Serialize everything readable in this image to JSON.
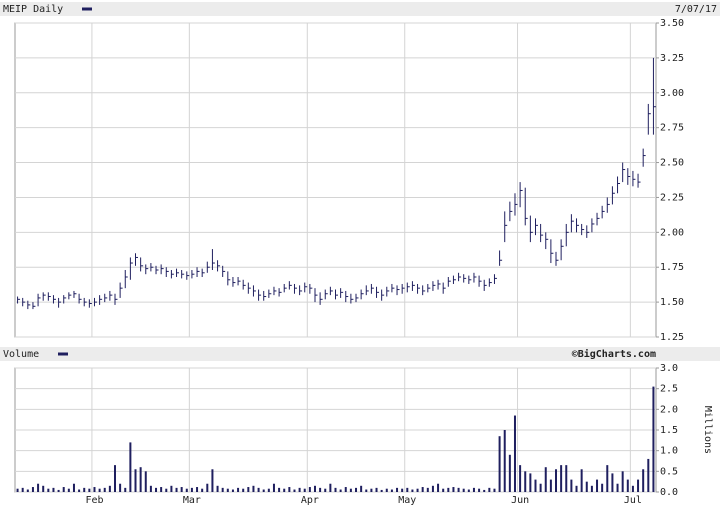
{
  "chart_data": [
    {
      "type": "ohlc",
      "title": "7/07/17",
      "legend": "top-left",
      "series": [
        {
          "name": "MEIP Daily",
          "color": "#1f1f5f",
          "high": [
            1.54,
            1.53,
            1.51,
            1.5,
            1.56,
            1.57,
            1.57,
            1.55,
            1.53,
            1.55,
            1.57,
            1.58,
            1.56,
            1.53,
            1.52,
            1.53,
            1.55,
            1.56,
            1.58,
            1.56,
            1.64,
            1.73,
            1.82,
            1.85,
            1.82,
            1.77,
            1.78,
            1.76,
            1.77,
            1.75,
            1.73,
            1.74,
            1.73,
            1.72,
            1.73,
            1.75,
            1.74,
            1.79,
            1.88,
            1.8,
            1.76,
            1.72,
            1.68,
            1.68,
            1.66,
            1.64,
            1.62,
            1.59,
            1.58,
            1.59,
            1.61,
            1.6,
            1.63,
            1.65,
            1.63,
            1.62,
            1.64,
            1.63,
            1.6,
            1.57,
            1.59,
            1.61,
            1.59,
            1.6,
            1.58,
            1.56,
            1.56,
            1.59,
            1.62,
            1.63,
            1.61,
            1.59,
            1.61,
            1.63,
            1.62,
            1.63,
            1.64,
            1.65,
            1.63,
            1.62,
            1.63,
            1.65,
            1.66,
            1.64,
            1.68,
            1.69,
            1.71,
            1.7,
            1.69,
            1.71,
            1.69,
            1.66,
            1.67,
            1.7,
            1.87,
            2.15,
            2.22,
            2.28,
            2.36,
            2.32,
            2.12,
            2.1,
            2.06,
            2.0,
            1.95,
            1.86,
            1.95,
            2.06,
            2.13,
            2.1,
            2.06,
            2.05,
            2.1,
            2.14,
            2.19,
            2.25,
            2.33,
            2.4,
            2.5,
            2.46,
            2.44,
            2.42,
            2.6,
            2.92,
            3.25
          ],
          "low": [
            1.49,
            1.47,
            1.45,
            1.45,
            1.47,
            1.51,
            1.51,
            1.49,
            1.46,
            1.49,
            1.52,
            1.53,
            1.49,
            1.47,
            1.46,
            1.47,
            1.48,
            1.5,
            1.51,
            1.48,
            1.53,
            1.6,
            1.66,
            1.76,
            1.72,
            1.7,
            1.72,
            1.7,
            1.7,
            1.68,
            1.67,
            1.68,
            1.67,
            1.66,
            1.67,
            1.68,
            1.68,
            1.71,
            1.73,
            1.72,
            1.68,
            1.62,
            1.61,
            1.62,
            1.59,
            1.56,
            1.54,
            1.51,
            1.51,
            1.53,
            1.55,
            1.54,
            1.57,
            1.59,
            1.56,
            1.55,
            1.57,
            1.56,
            1.5,
            1.48,
            1.52,
            1.55,
            1.52,
            1.53,
            1.5,
            1.49,
            1.5,
            1.52,
            1.55,
            1.56,
            1.53,
            1.51,
            1.54,
            1.57,
            1.55,
            1.56,
            1.57,
            1.58,
            1.56,
            1.55,
            1.57,
            1.58,
            1.59,
            1.56,
            1.61,
            1.63,
            1.65,
            1.64,
            1.63,
            1.64,
            1.61,
            1.58,
            1.61,
            1.63,
            1.76,
            1.93,
            2.08,
            2.12,
            2.18,
            2.05,
            1.93,
            1.98,
            1.93,
            1.88,
            1.78,
            1.76,
            1.8,
            1.9,
            2.0,
            2.0,
            1.98,
            1.96,
            2.0,
            2.05,
            2.1,
            2.14,
            2.2,
            2.28,
            2.36,
            2.34,
            2.33,
            2.32,
            2.47,
            2.7,
            2.7
          ],
          "close": [
            1.52,
            1.5,
            1.48,
            1.47,
            1.53,
            1.55,
            1.54,
            1.52,
            1.5,
            1.53,
            1.55,
            1.56,
            1.52,
            1.5,
            1.49,
            1.5,
            1.52,
            1.53,
            1.55,
            1.52,
            1.6,
            1.68,
            1.78,
            1.82,
            1.76,
            1.74,
            1.75,
            1.73,
            1.74,
            1.72,
            1.7,
            1.71,
            1.7,
            1.69,
            1.7,
            1.72,
            1.71,
            1.75,
            1.78,
            1.76,
            1.72,
            1.66,
            1.64,
            1.65,
            1.62,
            1.6,
            1.58,
            1.55,
            1.54,
            1.56,
            1.58,
            1.57,
            1.6,
            1.62,
            1.6,
            1.58,
            1.61,
            1.6,
            1.55,
            1.52,
            1.56,
            1.58,
            1.55,
            1.57,
            1.54,
            1.52,
            1.53,
            1.56,
            1.58,
            1.6,
            1.57,
            1.55,
            1.58,
            1.6,
            1.59,
            1.6,
            1.61,
            1.62,
            1.6,
            1.58,
            1.6,
            1.62,
            1.63,
            1.6,
            1.65,
            1.66,
            1.68,
            1.67,
            1.66,
            1.68,
            1.65,
            1.62,
            1.64,
            1.67,
            1.8,
            2.05,
            2.15,
            2.2,
            2.3,
            2.1,
            2.0,
            2.05,
            1.98,
            1.95,
            1.85,
            1.8,
            1.9,
            2.0,
            2.08,
            2.05,
            2.02,
            2.0,
            2.06,
            2.1,
            2.15,
            2.2,
            2.28,
            2.35,
            2.45,
            2.4,
            2.38,
            2.36,
            2.55,
            2.85,
            2.9
          ]
        }
      ],
      "ylim": [
        1.25,
        3.5
      ],
      "yticks": [
        1.25,
        {
          "value": 1.5,
          "label": "1.50"
        },
        1.75,
        {
          "value": 2,
          "label": "2.00"
        },
        2.25,
        {
          "value": 2.5,
          "label": "2.50"
        },
        2.75,
        {
          "value": 3,
          "label": "3.00"
        },
        3.25,
        {
          "value": 3.5,
          "label": "3.50"
        }
      ],
      "grid": true
    },
    {
      "type": "bar",
      "source": "©BigCharts.com",
      "y_label": "Millions",
      "legend": "top-left",
      "categories": [
        null,
        null,
        null,
        null,
        null,
        null,
        null,
        null,
        null,
        null,
        null,
        null,
        null,
        null,
        null,
        "Feb",
        null,
        null,
        null,
        null,
        null,
        null,
        null,
        null,
        null,
        null,
        null,
        null,
        null,
        null,
        null,
        null,
        null,
        null,
        "Mar",
        null,
        null,
        null,
        null,
        null,
        null,
        null,
        null,
        null,
        null,
        null,
        null,
        null,
        null,
        null,
        null,
        null,
        null,
        null,
        null,
        null,
        null,
        "Apr",
        null,
        null,
        null,
        null,
        null,
        null,
        null,
        null,
        null,
        null,
        null,
        null,
        null,
        null,
        null,
        null,
        null,
        null,
        "May",
        null,
        null,
        null,
        null,
        null,
        null,
        null,
        null,
        null,
        null,
        null,
        null,
        null,
        null,
        null,
        null,
        null,
        null,
        null,
        null,
        null,
        "Jun",
        null,
        null,
        null,
        null,
        null,
        null,
        null,
        null,
        null,
        null,
        null,
        null,
        null,
        null,
        null,
        null,
        null,
        null,
        null,
        null,
        null,
        "Jul",
        null,
        null,
        null,
        null
      ],
      "series": [
        {
          "name": "Volume",
          "color": "#1f1f5f",
          "values": [
            0.08,
            0.1,
            0.06,
            0.12,
            0.2,
            0.15,
            0.08,
            0.1,
            0.05,
            0.12,
            0.08,
            0.2,
            0.06,
            0.1,
            0.08,
            0.12,
            0.08,
            0.1,
            0.15,
            0.65,
            0.2,
            0.1,
            1.2,
            0.55,
            0.6,
            0.5,
            0.15,
            0.1,
            0.12,
            0.08,
            0.15,
            0.1,
            0.12,
            0.08,
            0.1,
            0.12,
            0.08,
            0.2,
            0.55,
            0.15,
            0.1,
            0.08,
            0.06,
            0.1,
            0.08,
            0.12,
            0.15,
            0.1,
            0.06,
            0.08,
            0.2,
            0.1,
            0.08,
            0.12,
            0.06,
            0.1,
            0.08,
            0.12,
            0.15,
            0.1,
            0.08,
            0.2,
            0.1,
            0.06,
            0.12,
            0.08,
            0.1,
            0.15,
            0.06,
            0.08,
            0.1,
            0.05,
            0.08,
            0.06,
            0.1,
            0.08,
            0.1,
            0.06,
            0.08,
            0.12,
            0.1,
            0.15,
            0.2,
            0.08,
            0.1,
            0.12,
            0.1,
            0.08,
            0.06,
            0.1,
            0.08,
            0.05,
            0.1,
            0.08,
            1.35,
            1.5,
            0.9,
            1.85,
            0.65,
            0.5,
            0.45,
            0.3,
            0.2,
            0.6,
            0.3,
            0.55,
            0.65,
            0.65,
            0.3,
            0.15,
            0.55,
            0.25,
            0.15,
            0.3,
            0.2,
            0.65,
            0.45,
            0.2,
            0.5,
            0.3,
            0.15,
            0.3,
            0.55,
            0.8,
            2.55
          ]
        }
      ],
      "ylim": [
        0,
        3
      ],
      "yticks": [
        {
          "value": 0,
          "label": "0.0"
        },
        0.5,
        {
          "value": 1,
          "label": "1.0"
        },
        1.5,
        {
          "value": 2,
          "label": "2.0"
        },
        2.5,
        {
          "value": 3,
          "label": "3.0"
        }
      ],
      "grid": true
    }
  ]
}
